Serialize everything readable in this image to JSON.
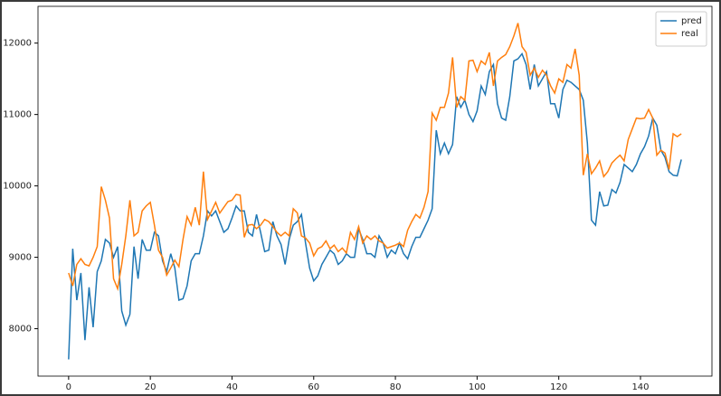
{
  "chart_data": {
    "type": "line",
    "x": [
      0,
      1,
      2,
      3,
      4,
      5,
      6,
      7,
      8,
      9,
      10,
      11,
      12,
      13,
      14,
      15,
      16,
      17,
      18,
      19,
      20,
      21,
      22,
      23,
      24,
      25,
      26,
      27,
      28,
      29,
      30,
      31,
      32,
      33,
      34,
      35,
      36,
      37,
      38,
      39,
      40,
      41,
      42,
      43,
      44,
      45,
      46,
      47,
      48,
      49,
      50,
      51,
      52,
      53,
      54,
      55,
      56,
      57,
      58,
      59,
      60,
      61,
      62,
      63,
      64,
      65,
      66,
      67,
      68,
      69,
      70,
      71,
      72,
      73,
      74,
      75,
      76,
      77,
      78,
      79,
      80,
      81,
      82,
      83,
      84,
      85,
      86,
      87,
      88,
      89,
      90,
      91,
      92,
      93,
      94,
      95,
      96,
      97,
      98,
      99,
      100,
      101,
      102,
      103,
      104,
      105,
      106,
      107,
      108,
      109,
      110,
      111,
      112,
      113,
      114,
      115,
      116,
      117,
      118,
      119,
      120,
      121,
      122,
      123,
      124,
      125,
      126,
      127,
      128,
      129,
      130,
      131,
      132,
      133,
      134,
      135,
      136,
      137,
      138,
      139,
      140,
      141,
      142,
      143,
      144,
      145,
      146,
      147,
      148,
      149,
      150
    ],
    "series": [
      {
        "name": "pred",
        "color": "#1f77b4",
        "values": [
          7570,
          9120,
          8400,
          8780,
          7840,
          8580,
          8020,
          8800,
          8950,
          9250,
          9200,
          9000,
          9150,
          8250,
          8050,
          8200,
          9150,
          8700,
          9250,
          9100,
          9100,
          9350,
          9300,
          8950,
          8800,
          9050,
          8850,
          8400,
          8420,
          8600,
          8950,
          9050,
          9050,
          9300,
          9650,
          9580,
          9650,
          9500,
          9350,
          9400,
          9550,
          9720,
          9650,
          9650,
          9350,
          9300,
          9600,
          9350,
          9080,
          9100,
          9500,
          9300,
          9180,
          8900,
          9250,
          9450,
          9500,
          9600,
          9200,
          8850,
          8670,
          8740,
          8900,
          9000,
          9100,
          9050,
          8900,
          8950,
          9050,
          9000,
          9000,
          9400,
          9250,
          9050,
          9050,
          9000,
          9300,
          9200,
          9000,
          9100,
          9050,
          9200,
          9050,
          8980,
          9150,
          9280,
          9280,
          9400,
          9520,
          9680,
          10780,
          10450,
          10600,
          10450,
          10580,
          11250,
          11100,
          11200,
          11000,
          10900,
          11050,
          11400,
          11280,
          11600,
          11700,
          11150,
          10950,
          10920,
          11250,
          11750,
          11780,
          11850,
          11700,
          11350,
          11700,
          11400,
          11500,
          11600,
          11150,
          11150,
          10950,
          11350,
          11480,
          11450,
          11400,
          11350,
          11200,
          10600,
          9520,
          9450,
          9920,
          9720,
          9730,
          9950,
          9900,
          10050,
          10300,
          10250,
          10200,
          10300,
          10450,
          10550,
          10700,
          10950,
          10850,
          10500,
          10400,
          10200,
          10150,
          10140,
          10370
        ]
      },
      {
        "name": "real",
        "color": "#ff7f0e",
        "values": [
          8780,
          8600,
          8900,
          8980,
          8900,
          8880,
          9000,
          9150,
          9990,
          9800,
          9550,
          8700,
          8560,
          8900,
          9300,
          9800,
          9300,
          9350,
          9650,
          9720,
          9770,
          9450,
          9100,
          9000,
          8750,
          8850,
          8960,
          8870,
          9250,
          9570,
          9450,
          9700,
          9450,
          10200,
          9530,
          9650,
          9770,
          9620,
          9700,
          9780,
          9800,
          9880,
          9870,
          9280,
          9450,
          9460,
          9400,
          9450,
          9530,
          9500,
          9430,
          9350,
          9300,
          9350,
          9300,
          9680,
          9620,
          9300,
          9270,
          9200,
          9020,
          9120,
          9150,
          9230,
          9120,
          9170,
          9080,
          9130,
          9060,
          9350,
          9250,
          9430,
          9200,
          9300,
          9250,
          9300,
          9230,
          9200,
          9130,
          9150,
          9170,
          9200,
          9150,
          9380,
          9500,
          9600,
          9550,
          9700,
          9920,
          11020,
          10920,
          11100,
          11100,
          11300,
          11800,
          11100,
          11250,
          11200,
          11750,
          11760,
          11600,
          11750,
          11700,
          11870,
          11400,
          11750,
          11800,
          11840,
          11950,
          12100,
          12280,
          11950,
          11870,
          11550,
          11650,
          11520,
          11620,
          11550,
          11400,
          11300,
          11500,
          11450,
          11700,
          11650,
          11920,
          11550,
          10150,
          10450,
          10170,
          10250,
          10350,
          10130,
          10200,
          10320,
          10380,
          10430,
          10350,
          10650,
          10800,
          10950,
          10940,
          10950,
          11070,
          10950,
          10430,
          10500,
          10460,
          10230,
          10730,
          10690,
          10730
        ]
      }
    ],
    "xlim": [
      -7.5,
      157.5
    ],
    "xticks": [
      0,
      20,
      40,
      60,
      80,
      100,
      120,
      140
    ],
    "ylim": [
      7336,
      12515
    ],
    "yticks": [
      8000,
      9000,
      10000,
      11000,
      12000
    ],
    "legend": "upper right"
  }
}
